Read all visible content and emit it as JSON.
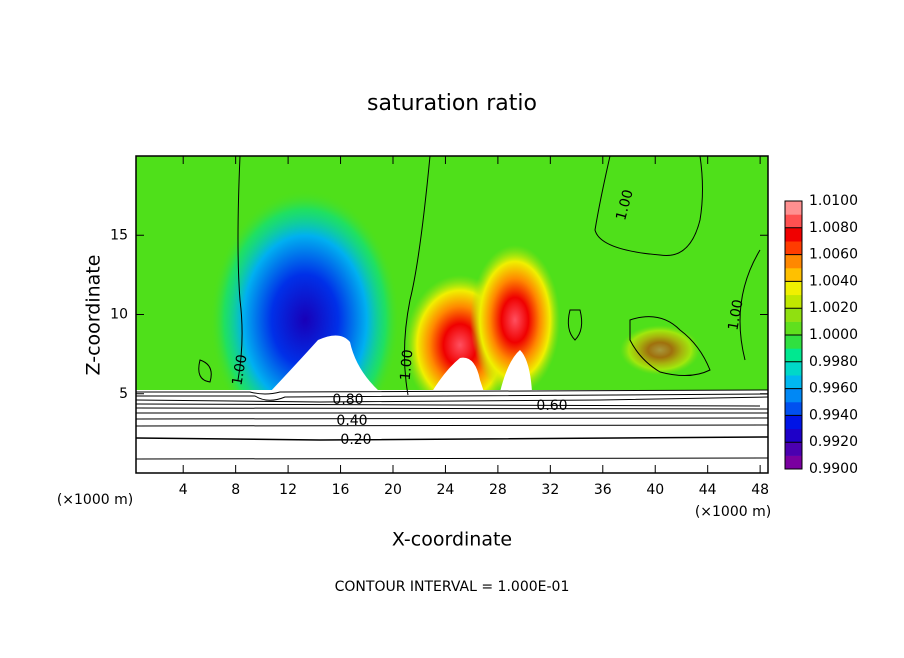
{
  "chart_data": {
    "type": "contour",
    "title": "saturation ratio",
    "xlabel": "X-coordinate",
    "ylabel": "Z-coordinate",
    "x_unit": "(×1000 m)",
    "footnote": "CONTOUR INTERVAL = 1.000E-01",
    "xlim": [
      0.4,
      48.6
    ],
    "xticks": [
      4,
      8,
      12,
      16,
      20,
      24,
      28,
      32,
      36,
      40,
      44,
      48
    ],
    "ylim": [
      0,
      20
    ],
    "yticks": [
      5,
      10,
      15
    ],
    "contour_labels": [
      {
        "value": 1.0,
        "label": "1.00"
      },
      {
        "value": 1.0,
        "label": "1.00"
      },
      {
        "value": 1.0,
        "label": "1.00"
      },
      {
        "value": 1.0,
        "label": "1.00"
      },
      {
        "value": 0.8,
        "label": "0.80"
      },
      {
        "value": 0.6,
        "label": "0.60"
      },
      {
        "value": 0.4,
        "label": "0.40"
      },
      {
        "value": 0.2,
        "label": "0.20"
      }
    ],
    "colorbar": {
      "lim": [
        0.99,
        1.01
      ],
      "ticks": [
        {
          "value": 0.99,
          "label": "0.9900"
        },
        {
          "value": 0.992,
          "label": "0.9920"
        },
        {
          "value": 0.994,
          "label": "0.9940"
        },
        {
          "value": 0.996,
          "label": "0.9960"
        },
        {
          "value": 0.998,
          "label": "0.9980"
        },
        {
          "value": 1.0,
          "label": "1.0000"
        },
        {
          "value": 1.002,
          "label": "1.0020"
        },
        {
          "value": 1.004,
          "label": "1.0040"
        },
        {
          "value": 1.006,
          "label": "1.0060"
        },
        {
          "value": 1.008,
          "label": "1.0080"
        },
        {
          "value": 1.01,
          "label": "1.0100"
        }
      ],
      "colors": [
        "#7a00a0",
        "#4b00b0",
        "#1e00c8",
        "#0014e6",
        "#0050f0",
        "#0088f5",
        "#00b8f0",
        "#00d8c8",
        "#00e890",
        "#30e040",
        "#5fe01e",
        "#90e010",
        "#c0e800",
        "#f0f000",
        "#ffc000",
        "#ff8800",
        "#ff3c00",
        "#f00000",
        "#ff5050",
        "#ff9090"
      ]
    }
  }
}
